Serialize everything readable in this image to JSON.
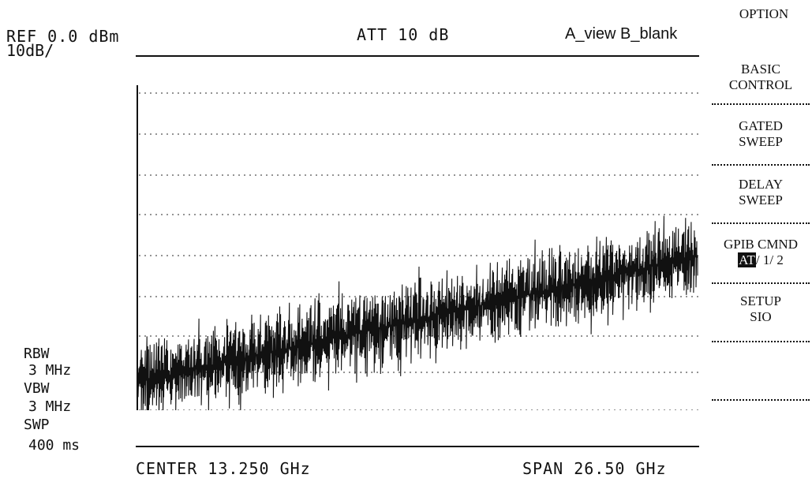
{
  "header": {
    "ref_level": "REF 0.0 dBm",
    "scale": "10dB/",
    "attenuation": "ATT 10 dB",
    "view_mode": "A_view B_blank"
  },
  "parameters": {
    "rbw_label": "RBW",
    "rbw_value": "3 MHz",
    "vbw_label": "VBW",
    "vbw_value": "3 MHz",
    "swp_label": "SWP",
    "swp_value": "400 ms"
  },
  "footer": {
    "center": "CENTER 13.250 GHz",
    "span": "SPAN 26.50 GHz"
  },
  "menu": {
    "title": "OPTION",
    "items": [
      {
        "line1": "BASIC",
        "line2": "CONTROL"
      },
      {
        "line1": "GATED",
        "line2": "SWEEP"
      },
      {
        "line1": "DELAY",
        "line2": "SWEEP"
      },
      {
        "line1": "GPIB CMND",
        "line2_highlight": "AT",
        "line2_rest": "/ 1/ 2"
      },
      {
        "line1": "SETUP",
        "line2": "SIO"
      },
      {
        "line1": "",
        "line2": ""
      }
    ]
  },
  "trace": {
    "divisions": 10,
    "color": "#111111",
    "grid_color": "#555555"
  }
}
